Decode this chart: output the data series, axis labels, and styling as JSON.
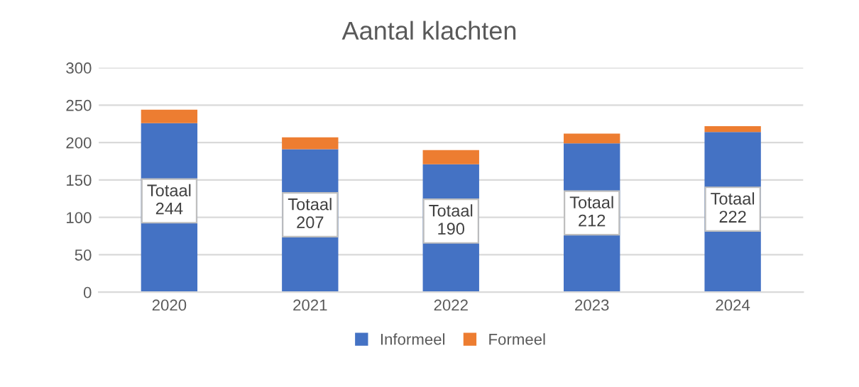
{
  "chart_data": {
    "type": "bar",
    "title": "Aantal klachten",
    "stacked": true,
    "categories": [
      "2020",
      "2021",
      "2022",
      "2023",
      "2024"
    ],
    "series": [
      {
        "name": "Informeel",
        "color": "#4472c4",
        "values": [
          226,
          191,
          171,
          199,
          214
        ]
      },
      {
        "name": "Formeel",
        "color": "#ed7d31",
        "values": [
          18,
          16,
          19,
          13,
          8
        ]
      }
    ],
    "totals": [
      "Totaal\n244",
      "Totaal\n207",
      "Totaal\n190",
      "Totaal\n212",
      "Totaal\n222"
    ],
    "ylim": [
      0,
      300
    ],
    "yticks": [
      0,
      50,
      100,
      150,
      200,
      250,
      300
    ],
    "grid": "y",
    "legend": "bottom"
  }
}
